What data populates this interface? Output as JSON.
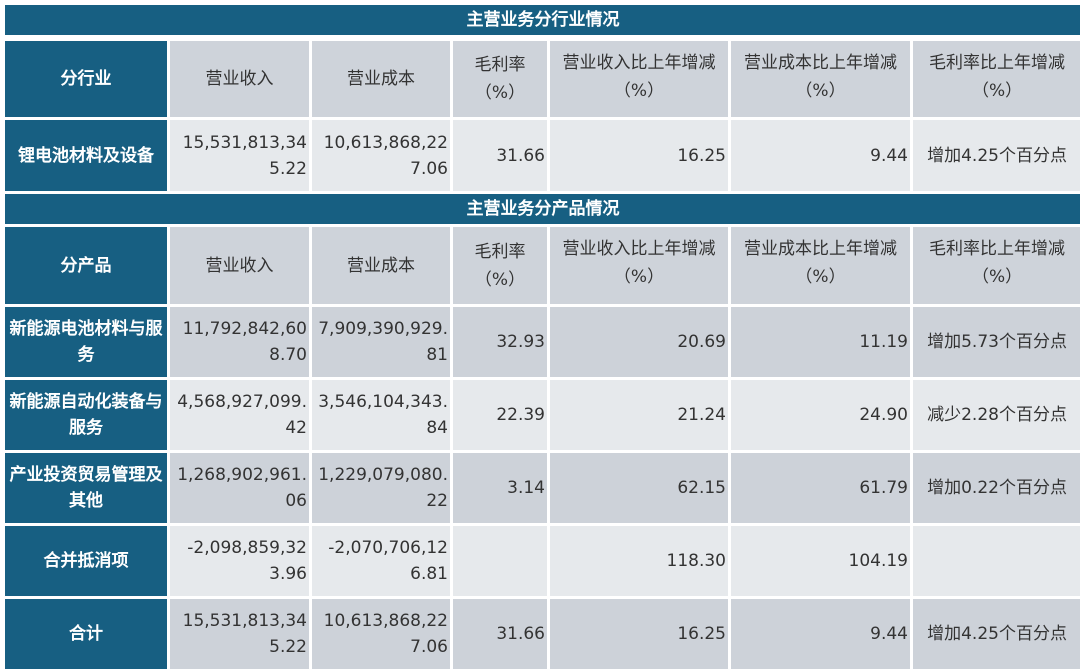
{
  "sections": [
    {
      "title": "主营业务分行业情况",
      "headers": [
        "分行业",
        "营业收入",
        "营业成本",
        "毛利率（%）",
        "营业收入比上年增减（%）",
        "营业成本比上年增减（%）",
        "毛利率比上年增减（%）"
      ],
      "rows": [
        [
          "锂电池材料及设备",
          "15,531,813,345.22",
          "10,613,868,227.06",
          "31.66",
          "16.25",
          "9.44",
          "增加4.25个百分点"
        ]
      ]
    },
    {
      "title": "主营业务分产品情况",
      "headers": [
        "分产品",
        "营业收入",
        "营业成本",
        "毛利率（%）",
        "营业收入比上年增减（%）",
        "营业成本比上年增减（%）",
        "毛利率比上年增减（%）"
      ],
      "rows": [
        [
          "新能源电池材料与服务",
          "11,792,842,608.70",
          "7,909,390,929.81",
          "32.93",
          "20.69",
          "11.19",
          "增加5.73个百分点"
        ],
        [
          "新能源自动化装备与服务",
          "4,568,927,099.42",
          "3,546,104,343.84",
          "22.39",
          "21.24",
          "24.90",
          "减少2.28个百分点"
        ],
        [
          "产业投资贸易管理及其他",
          "1,268,902,961.06",
          "1,229,079,080.22",
          "3.14",
          "62.15",
          "61.79",
          "增加0.22个百分点"
        ],
        [
          "合并抵消项",
          "-2,098,859,323.96",
          "-2,070,706,126.81",
          "",
          "118.30",
          "104.19",
          ""
        ],
        [
          "合计",
          "15,531,813,345.22",
          "10,613,868,227.06",
          "31.66",
          "16.25",
          "9.44",
          "增加4.25个百分点"
        ]
      ]
    }
  ],
  "colors": {
    "header_blue": "#175f82",
    "row_dark": "#cdd2d9",
    "row_light": "#e6e9ec"
  }
}
